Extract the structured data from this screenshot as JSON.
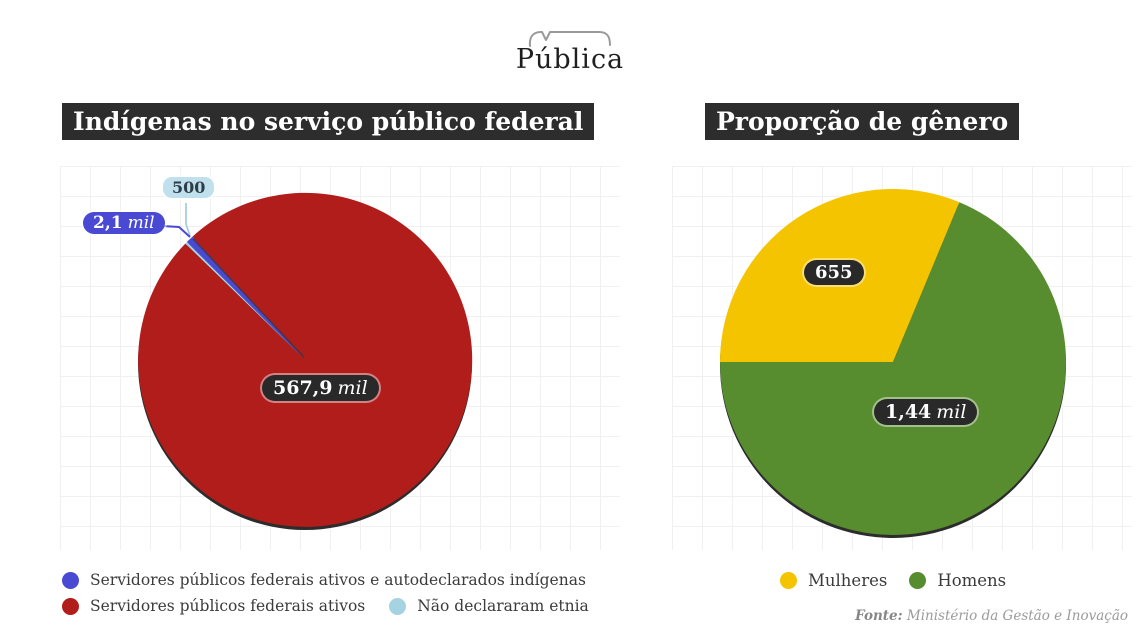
{
  "logo": {
    "text": "Pública"
  },
  "source": {
    "prefix": "Fonte:",
    "text": "Ministério da Gestão e Inovação"
  },
  "chart_data": [
    {
      "type": "pie",
      "title": "Indígenas no serviço público federal",
      "legend_position": "bottom",
      "grid": true,
      "slices": [
        {
          "label": "Servidores públicos federais ativos e autodeclarados indígenas",
          "value": 2100,
          "display_value": "2,1",
          "display_unit": "mil",
          "color": "#4a49d4"
        },
        {
          "label": "Servidores públicos federais ativos",
          "value": 567900,
          "display_value": "567,9",
          "display_unit": "mil",
          "color": "#b11d1a"
        },
        {
          "label": "Não declararam etnia",
          "value": 500,
          "display_value": "500",
          "display_unit": "",
          "color": "#a5d3e2"
        }
      ]
    },
    {
      "type": "pie",
      "title": "Proporção de gênero",
      "legend_position": "bottom",
      "grid": true,
      "slices": [
        {
          "label": "Mulheres",
          "value": 655,
          "display_value": "655",
          "display_unit": "",
          "color": "#f5c400"
        },
        {
          "label": "Homens",
          "value": 1440,
          "display_value": "1,44",
          "display_unit": "mil",
          "color": "#578c2f"
        }
      ]
    }
  ]
}
